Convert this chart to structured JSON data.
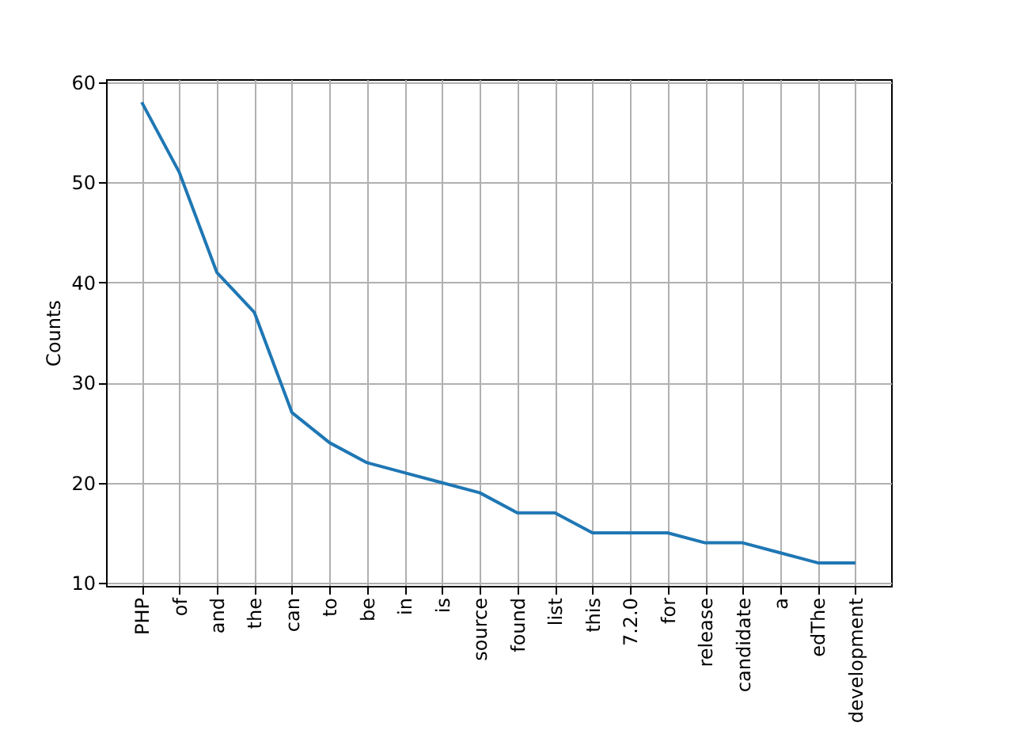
{
  "chart_data": {
    "type": "line",
    "ylabel": "Counts",
    "categories": [
      "PHP",
      "of",
      "and",
      "the",
      "can",
      "to",
      "be",
      "in",
      "is",
      "source",
      "found",
      "list",
      "this",
      "7.2.0",
      "for",
      "release",
      "candidate",
      "a",
      "edThe",
      "development"
    ],
    "series": [
      {
        "color": "#1f77b4",
        "values": [
          58,
          51,
          41,
          37,
          27,
          24,
          22,
          21,
          20,
          19,
          17,
          17,
          15,
          15,
          15,
          14,
          14,
          13,
          12,
          12
        ]
      }
    ],
    "ylim": [
      9.7,
      60.3
    ],
    "yticks": [
      10,
      20,
      30,
      40,
      50,
      60
    ],
    "grid": true,
    "marker": "none",
    "line_style": "solid"
  }
}
